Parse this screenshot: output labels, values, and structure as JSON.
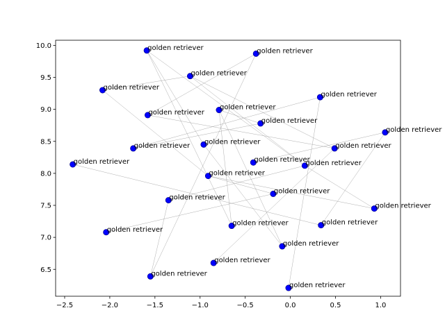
{
  "chart_data": {
    "type": "scatter",
    "title": "",
    "xlabel": "",
    "ylabel": "",
    "xlim": [
      -2.6,
      1.22
    ],
    "ylim": [
      6.08,
      10.08
    ],
    "xticks": [
      -2.5,
      -2.0,
      -1.5,
      -1.0,
      -0.5,
      0.0,
      0.5,
      1.0
    ],
    "xtick_labels": [
      "−2.5",
      "−2.0",
      "−1.5",
      "−1.0",
      "−0.5",
      "0.0",
      "0.5",
      "1.0"
    ],
    "yticks": [
      6.5,
      7.0,
      7.5,
      8.0,
      8.5,
      9.0,
      9.5,
      10.0
    ],
    "ytick_labels": [
      "6.5",
      "7.0",
      "7.5",
      "8.0",
      "8.5",
      "9.0",
      "9.5",
      "10.0"
    ],
    "grid": false,
    "point_color": "#0000ff",
    "edge_color": "#999999",
    "points": [
      {
        "x": -1.59,
        "y": 9.92,
        "label": "golden retriever"
      },
      {
        "x": -0.38,
        "y": 9.87,
        "label": "golden retriever"
      },
      {
        "x": -1.11,
        "y": 9.52,
        "label": "golden retriever"
      },
      {
        "x": -2.08,
        "y": 9.3,
        "label": "golden retriever"
      },
      {
        "x": 0.33,
        "y": 9.19,
        "label": "golden retriever"
      },
      {
        "x": -0.79,
        "y": 8.99,
        "label": "golden retriever"
      },
      {
        "x": -1.58,
        "y": 8.91,
        "label": "golden retriever"
      },
      {
        "x": -0.33,
        "y": 8.78,
        "label": "golden retriever"
      },
      {
        "x": 1.05,
        "y": 8.64,
        "label": "golden retriever"
      },
      {
        "x": -0.96,
        "y": 8.45,
        "label": "golden retriever"
      },
      {
        "x": -1.74,
        "y": 8.39,
        "label": "golden retriever"
      },
      {
        "x": 0.49,
        "y": 8.39,
        "label": "golden retriever"
      },
      {
        "x": -0.41,
        "y": 8.17,
        "label": "golden retriever"
      },
      {
        "x": -2.41,
        "y": 8.14,
        "label": "golden retriever"
      },
      {
        "x": 0.16,
        "y": 8.12,
        "label": "golden retriever"
      },
      {
        "x": -0.91,
        "y": 7.96,
        "label": "golden retriever"
      },
      {
        "x": -0.19,
        "y": 7.68,
        "label": "golden retriever"
      },
      {
        "x": -1.35,
        "y": 7.58,
        "label": "golden retriever"
      },
      {
        "x": 0.93,
        "y": 7.45,
        "label": "golden retriever"
      },
      {
        "x": 0.34,
        "y": 7.19,
        "label": "golden retriever"
      },
      {
        "x": -0.65,
        "y": 7.18,
        "label": "golden retriever"
      },
      {
        "x": -2.04,
        "y": 7.08,
        "label": "golden retriever"
      },
      {
        "x": -0.09,
        "y": 6.86,
        "label": "golden retriever"
      },
      {
        "x": -0.85,
        "y": 6.6,
        "label": "golden retriever"
      },
      {
        "x": -1.55,
        "y": 6.39,
        "label": "golden retriever"
      },
      {
        "x": -0.02,
        "y": 6.21,
        "label": "golden retriever"
      }
    ],
    "edges": [
      [
        0,
        14
      ],
      [
        0,
        20
      ],
      [
        1,
        24
      ],
      [
        1,
        6
      ],
      [
        2,
        3
      ],
      [
        2,
        11
      ],
      [
        3,
        15
      ],
      [
        4,
        10
      ],
      [
        4,
        25
      ],
      [
        5,
        7
      ],
      [
        5,
        20
      ],
      [
        6,
        11
      ],
      [
        7,
        10
      ],
      [
        8,
        19
      ],
      [
        8,
        12
      ],
      [
        9,
        22
      ],
      [
        11,
        23
      ],
      [
        13,
        19
      ],
      [
        14,
        17
      ],
      [
        14,
        18
      ],
      [
        15,
        16
      ],
      [
        16,
        21
      ],
      [
        17,
        24
      ],
      [
        18,
        15
      ],
      [
        0,
        9
      ],
      [
        2,
        14
      ],
      [
        5,
        22
      ]
    ]
  }
}
